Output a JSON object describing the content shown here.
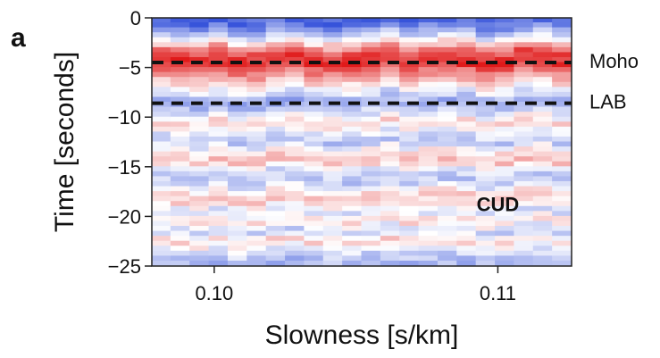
{
  "panel_label": "a",
  "chart_data": {
    "type": "heatmap",
    "title": "",
    "xlabel": "Slowness [s/km]",
    "ylabel": "Time [seconds]",
    "xlim": [
      0.0978,
      0.1126
    ],
    "ylim": [
      -25,
      0
    ],
    "x_ticks": [
      0.1,
      0.11
    ],
    "x_tick_labels": [
      "0.10",
      "0.11"
    ],
    "y_ticks": [
      0,
      -5,
      -10,
      -15,
      -20,
      -25
    ],
    "y_tick_labels": [
      "0",
      "−5",
      "−10",
      "−15",
      "−20",
      "−25"
    ],
    "colormap": {
      "positive": "#e01a1a",
      "negative": "#1f3fd6",
      "zero": "#ffffff"
    },
    "reference_lines": [
      {
        "label": "Moho",
        "time": -4.5,
        "style": "dashed",
        "color": "#111111"
      },
      {
        "label": "LAB",
        "time": -8.6,
        "style": "dashed",
        "color": "#111111"
      }
    ],
    "annotations": [
      {
        "text": "CUD",
        "x": 0.11,
        "y": -20.0
      }
    ],
    "time_profile": [
      {
        "time": -0.5,
        "amplitude": -0.75
      },
      {
        "time": -1.5,
        "amplitude": -0.35
      },
      {
        "time": -2.5,
        "amplitude": 0.15
      },
      {
        "time": -3.5,
        "amplitude": 0.75
      },
      {
        "time": -4.5,
        "amplitude": 0.95
      },
      {
        "time": -5.5,
        "amplitude": 0.55
      },
      {
        "time": -6.5,
        "amplitude": 0.2
      },
      {
        "time": -7.5,
        "amplitude": -0.15
      },
      {
        "time": -8.5,
        "amplitude": -0.45
      },
      {
        "time": -9.5,
        "amplitude": -0.2
      },
      {
        "time": -10.5,
        "amplitude": 0.2
      },
      {
        "time": -11.5,
        "amplitude": -0.1
      },
      {
        "time": -12.5,
        "amplitude": -0.3
      },
      {
        "time": -13.5,
        "amplitude": 0.15
      },
      {
        "time": -14.5,
        "amplitude": 0.25
      },
      {
        "time": -15.5,
        "amplitude": -0.2
      },
      {
        "time": -16.5,
        "amplitude": -0.3
      },
      {
        "time": -17.5,
        "amplitude": 0.15
      },
      {
        "time": -18.5,
        "amplitude": 0.2
      },
      {
        "time": -19.5,
        "amplitude": -0.15
      },
      {
        "time": -20.5,
        "amplitude": 0.15
      },
      {
        "time": -21.5,
        "amplitude": -0.25
      },
      {
        "time": -22.5,
        "amplitude": 0.2
      },
      {
        "time": -23.5,
        "amplitude": -0.15
      },
      {
        "time": -24.5,
        "amplitude": -0.35
      }
    ]
  }
}
